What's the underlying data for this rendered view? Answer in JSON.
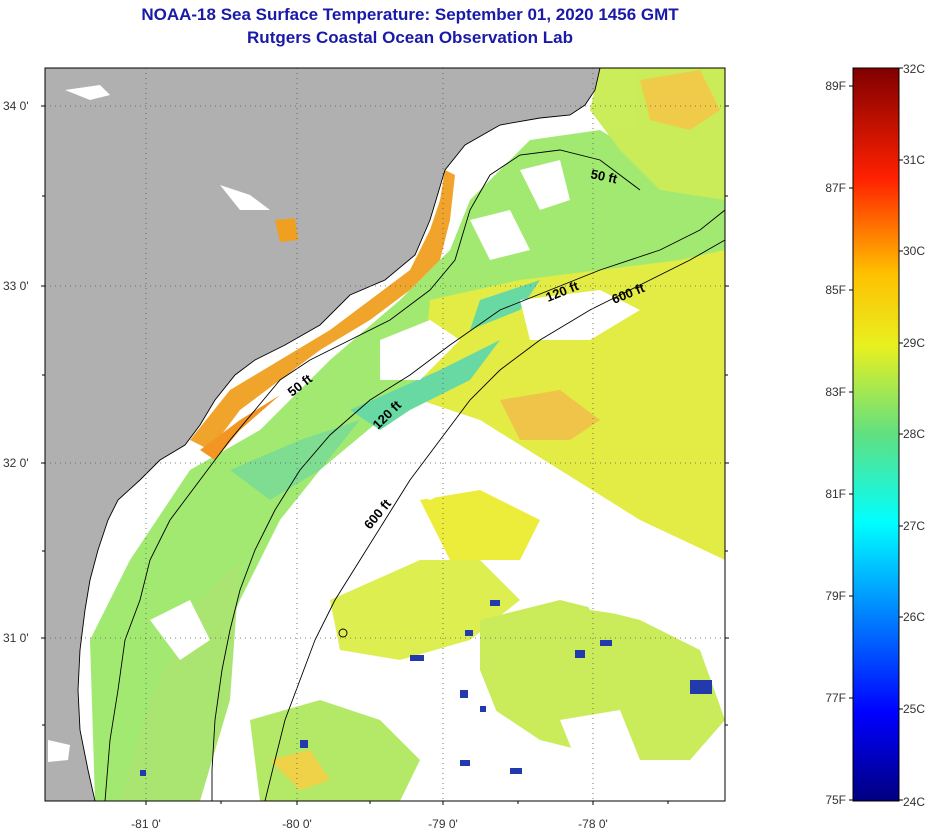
{
  "title": "NOAA-18 Sea Surface Temperature:  September 01, 2020 1456 GMT",
  "subtitle": "Rutgers Coastal Ocean Observation Lab",
  "lat_labels": [
    "34 0'",
    "33 0'",
    "32 0'",
    "31 0'"
  ],
  "lon_labels": [
    "-81 0'",
    "-80 0'",
    "-79 0'",
    "-78 0'"
  ],
  "contour_labels": [
    "50 ft",
    "120 ft",
    "600 ft",
    "50 ft",
    "120 ft",
    "600 ft"
  ],
  "colorbar": {
    "fahrenheit": [
      "89F",
      "87F",
      "85F",
      "83F",
      "81F",
      "79F",
      "77F",
      "75F"
    ],
    "celsius": [
      "32C",
      "31C",
      "30C",
      "29C",
      "28C",
      "27C",
      "26C",
      "25C",
      "24C"
    ]
  },
  "colors": {
    "title": "#1a1aa8",
    "land": "#b0b0b0",
    "cloud": "#ffffff",
    "warm": "#f0a020",
    "mid": "#e8e820",
    "cool": "#70e070",
    "cold": "#1830a8"
  }
}
